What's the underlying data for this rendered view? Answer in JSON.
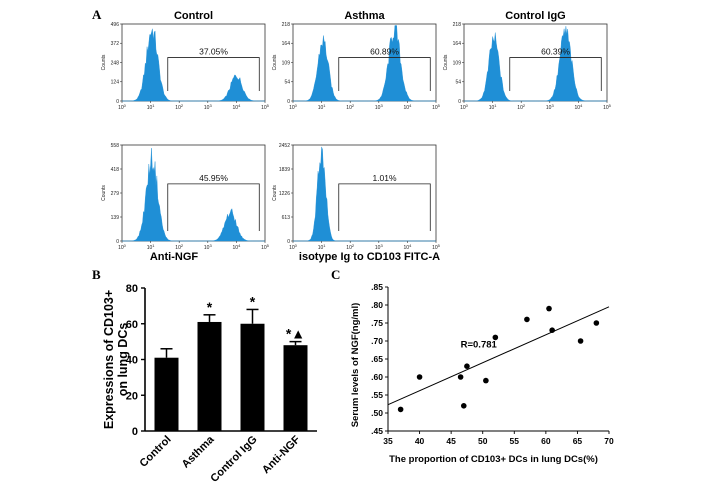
{
  "panel_labels": {
    "a": "A",
    "b": "B",
    "c": "C"
  },
  "chart_data": [
    {
      "type": "histogram",
      "id": "hist-control",
      "title": "Control",
      "title_position": "top",
      "gate_percent": "37.05%",
      "y_ticks": [
        "0",
        "124",
        "248",
        "372",
        "496"
      ],
      "y_label": "Counts",
      "x_tick_exponents": [
        "0",
        "1",
        "2",
        "3",
        "4",
        "5"
      ],
      "peaks": [
        {
          "log": 1.05,
          "height": 0.92,
          "width": 0.2
        },
        {
          "log": 4.0,
          "height": 0.33,
          "width": 0.2
        }
      ],
      "gate_range": [
        1.6,
        4.8
      ]
    },
    {
      "type": "histogram",
      "id": "hist-asthma",
      "title": "Asthma",
      "title_position": "top",
      "gate_percent": "60.89%",
      "y_ticks": [
        "0",
        "54",
        "109",
        "164",
        "218"
      ],
      "y_label": "Counts",
      "x_tick_exponents": [
        "0",
        "1",
        "2",
        "3",
        "4",
        "5"
      ],
      "peaks": [
        {
          "log": 1.05,
          "height": 0.78,
          "width": 0.18
        },
        {
          "log": 3.55,
          "height": 0.93,
          "width": 0.2
        }
      ],
      "gate_range": [
        1.6,
        4.8
      ]
    },
    {
      "type": "histogram",
      "id": "hist-control-igg",
      "title": "Control IgG",
      "title_position": "top",
      "gate_percent": "60.39%",
      "y_ticks": [
        "0",
        "54",
        "109",
        "164",
        "218"
      ],
      "y_label": "Counts",
      "x_tick_exponents": [
        "0",
        "1",
        "2",
        "3",
        "4",
        "5"
      ],
      "peaks": [
        {
          "log": 1.05,
          "height": 0.8,
          "width": 0.18
        },
        {
          "log": 3.55,
          "height": 0.9,
          "width": 0.2
        }
      ],
      "gate_range": [
        1.6,
        4.8
      ]
    },
    {
      "type": "histogram",
      "id": "hist-anti-ngf",
      "title": "Anti-NGF",
      "title_position": "bottom",
      "gate_percent": "45.95%",
      "y_ticks": [
        "0",
        "139",
        "279",
        "418",
        "558"
      ],
      "y_label": "Counts",
      "x_tick_exponents": [
        "0",
        "1",
        "2",
        "3",
        "4",
        "5"
      ],
      "peaks": [
        {
          "log": 1.05,
          "height": 0.85,
          "width": 0.2
        },
        {
          "log": 3.8,
          "height": 0.3,
          "width": 0.2
        }
      ],
      "gate_range": [
        1.6,
        4.8
      ]
    },
    {
      "type": "histogram",
      "id": "hist-isotype",
      "title": "isotype Ig to CD103 FITC-A",
      "title_position": "bottom",
      "gate_percent": "1.01%",
      "y_ticks": [
        "0",
        "613",
        "1226",
        "1839",
        "2452"
      ],
      "y_label": "Counts",
      "x_tick_exponents": [
        "0",
        "1",
        "2",
        "3",
        "4",
        "5"
      ],
      "peaks": [
        {
          "log": 1.0,
          "height": 0.95,
          "width": 0.14
        }
      ],
      "gate_range": [
        1.6,
        4.8
      ]
    },
    {
      "type": "bar",
      "id": "bar-cd103",
      "categories": [
        "Control",
        "Asthma",
        "Control IgG",
        "Anti-NGF"
      ],
      "values": [
        41,
        61,
        60,
        48
      ],
      "errors": [
        5,
        4,
        8,
        2
      ],
      "markers": [
        "",
        "*",
        "*",
        "*▲"
      ],
      "ylabel_line1": "Expressions of CD103+",
      "ylabel_line2": "on lung DCs",
      "ylim": [
        0,
        80
      ],
      "y_ticks": [
        "0",
        "20",
        "40",
        "60",
        "80"
      ]
    },
    {
      "type": "scatter",
      "id": "scatter-ngf",
      "x": [
        37,
        40,
        46.5,
        47,
        47.5,
        50.5,
        52,
        57,
        60.5,
        61,
        65.5,
        68
      ],
      "y": [
        0.51,
        0.6,
        0.6,
        0.52,
        0.63,
        0.59,
        0.71,
        0.76,
        0.79,
        0.73,
        0.7,
        0.75
      ],
      "fit_line": {
        "x": [
          35,
          70
        ],
        "y": [
          0.523,
          0.795
        ]
      },
      "annotation": "R=0.781",
      "xlabel": "The proportion of  CD103+ DCs in lung DCs(%)",
      "ylabel": "Serum levels of NGF(ng/ml)",
      "xlim": [
        35,
        70
      ],
      "ylim": [
        0.45,
        0.85
      ],
      "x_ticks": [
        "35",
        "40",
        "45",
        "50",
        "55",
        "60",
        "65",
        "70"
      ],
      "y_ticks": [
        ".45",
        ".50",
        ".55",
        ".60",
        ".65",
        ".70",
        ".75",
        ".80",
        ".85"
      ]
    }
  ],
  "colors": {
    "histogram_fill": "#1f8fd6",
    "bar_fill": "#000000",
    "text": "#000000"
  }
}
